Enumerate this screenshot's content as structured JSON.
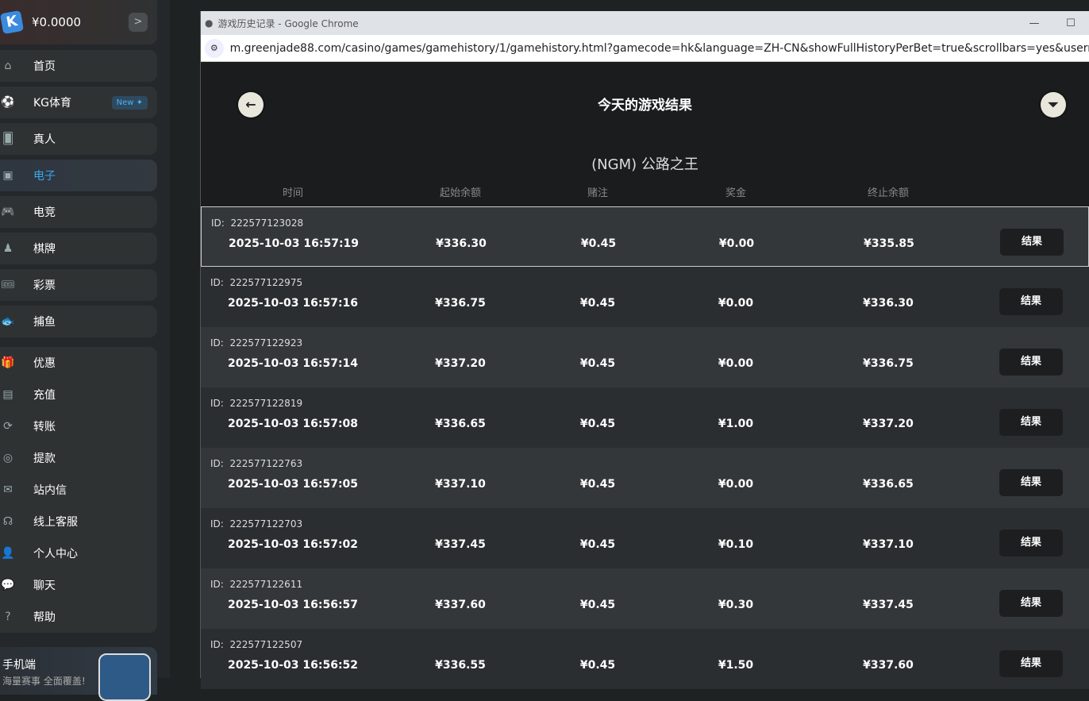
{
  "sidebar": {
    "balance": "¥0.0000",
    "new_badge": "New ✦",
    "nav": [
      {
        "label": "首页",
        "icon": "home-icon"
      },
      {
        "label": "KG体育",
        "icon": "soccer-ball-icon"
      },
      {
        "label": "真人",
        "icon": "cards-icon"
      },
      {
        "label": "电子",
        "icon": "slot-machine-icon",
        "active": true
      },
      {
        "label": "电竞",
        "icon": "gamepad-icon"
      },
      {
        "label": "棋牌",
        "icon": "chess-icon"
      },
      {
        "label": "彩票",
        "icon": "ticket-icon"
      },
      {
        "label": "捕鱼",
        "icon": "fish-icon"
      }
    ],
    "menu": [
      {
        "label": "优惠",
        "icon": "gift-icon"
      },
      {
        "label": "充值",
        "icon": "wallet-icon"
      },
      {
        "label": "转账",
        "icon": "transfer-icon"
      },
      {
        "label": "提款",
        "icon": "withdraw-icon"
      },
      {
        "label": "站内信",
        "icon": "mail-icon"
      },
      {
        "label": "线上客服",
        "icon": "headset-icon"
      },
      {
        "label": "个人中心",
        "icon": "user-icon"
      },
      {
        "label": "聊天",
        "icon": "chat-icon"
      },
      {
        "label": "帮助",
        "icon": "help-icon"
      }
    ],
    "promo": {
      "title": "手机端",
      "subtitle": "海量赛事 全面覆盖!"
    }
  },
  "window": {
    "title": "游戏历史记录 - Google Chrome",
    "url": "m.greenjade88.com/casino/games/gamehistory/1/gamehistory.html?gamecode=hk&language=ZH-CN&showFullHistoryPerBet=true&scrollbars=yes&usern..."
  },
  "page": {
    "title": "今天的游戏结果",
    "game": "(NGM) 公路之王",
    "columns": [
      "时间",
      "起始余额",
      "赌注",
      "奖金",
      "终止余额"
    ],
    "id_label": "ID:",
    "result_label": "结果",
    "rows": [
      {
        "id": "222577123028",
        "time": "2025-10-03  16:57:19",
        "start": "¥336.30",
        "bet": "¥0.45",
        "win": "¥0.00",
        "end": "¥335.85"
      },
      {
        "id": "222577122975",
        "time": "2025-10-03  16:57:16",
        "start": "¥336.75",
        "bet": "¥0.45",
        "win": "¥0.00",
        "end": "¥336.30"
      },
      {
        "id": "222577122923",
        "time": "2025-10-03  16:57:14",
        "start": "¥337.20",
        "bet": "¥0.45",
        "win": "¥0.00",
        "end": "¥336.75"
      },
      {
        "id": "222577122819",
        "time": "2025-10-03  16:57:08",
        "start": "¥336.65",
        "bet": "¥0.45",
        "win": "¥1.00",
        "end": "¥337.20"
      },
      {
        "id": "222577122763",
        "time": "2025-10-03  16:57:05",
        "start": "¥337.10",
        "bet": "¥0.45",
        "win": "¥0.00",
        "end": "¥336.65"
      },
      {
        "id": "222577122703",
        "time": "2025-10-03  16:57:02",
        "start": "¥337.45",
        "bet": "¥0.45",
        "win": "¥0.10",
        "end": "¥337.10"
      },
      {
        "id": "222577122611",
        "time": "2025-10-03  16:56:57",
        "start": "¥337.60",
        "bet": "¥0.45",
        "win": "¥0.30",
        "end": "¥337.45"
      },
      {
        "id": "222577122507",
        "time": "2025-10-03  16:56:52",
        "start": "¥336.55",
        "bet": "¥0.45",
        "win": "¥1.50",
        "end": "¥337.60"
      }
    ]
  }
}
